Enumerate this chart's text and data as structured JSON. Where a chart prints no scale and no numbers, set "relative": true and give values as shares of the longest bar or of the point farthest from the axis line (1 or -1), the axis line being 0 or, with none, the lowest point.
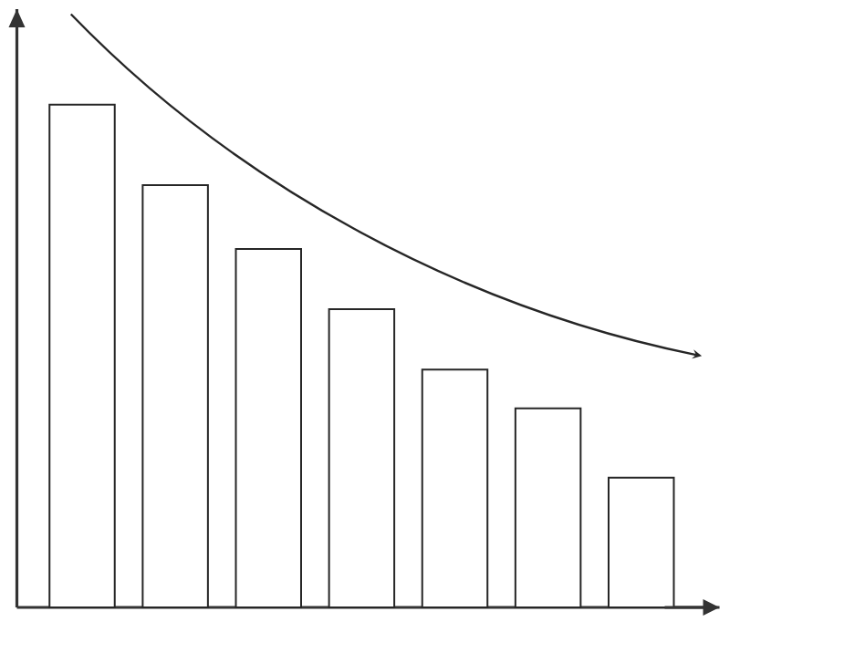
{
  "chart_data": {
    "type": "bar",
    "relative": true,
    "categories": [
      null,
      null,
      null,
      null,
      null,
      null,
      null
    ],
    "values": [
      1,
      0.84,
      0.713,
      0.593,
      0.473,
      0.396,
      0.258
    ],
    "color": "#ffffff"
  }
}
